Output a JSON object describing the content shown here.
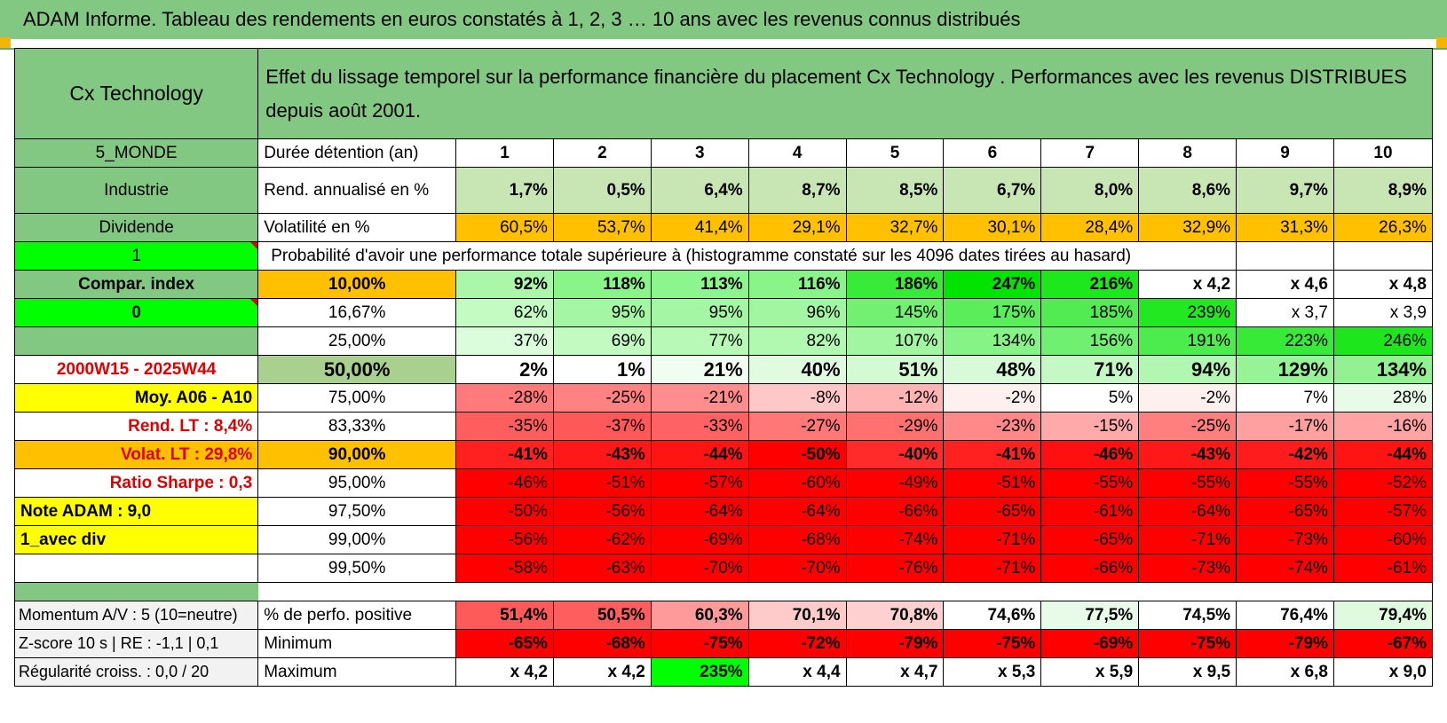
{
  "title": "ADAM Informe. Tableau des rendements en euros constatés à 1, 2, 3 … 10 ans avec les revenus connus distribués",
  "header": {
    "fund_name": "Cx Technology",
    "description": "Effet du lissage temporel sur la performance financière du placement Cx Technology . Performances avec les revenus DISTRIBUES depuis août 2001."
  },
  "side": {
    "category": "5_MONDE",
    "sector": "Industrie",
    "income_type": "Dividende",
    "flag_one": "1",
    "compar_index": "Compar. index",
    "flag_zero": "0",
    "period": "2000W15 - 2025W44",
    "moy": "Moy. A06 - A10",
    "rend_lt": "Rend. LT :    8,4%",
    "volat_lt": "Volat. LT :    29,8%",
    "sharpe": "Ratio Sharpe :     0,3",
    "note": "Note ADAM : 9,0",
    "avec_div": "1_avec div",
    "momentum": "Momentum A/V : 5 (10=neutre)",
    "zscore": "Z-score 10 s | RE : -1,1 | 0,1",
    "regularite": "Régularité croiss. : 0,0 / 20"
  },
  "labels": {
    "duration": "Durée détention (an)",
    "rend": "Rend. annualisé en %",
    "volat": "Volatilité en %",
    "probability": "Probabilité d'avoir une performance totale supérieure à (histogramme constaté sur les 4096 dates tirées au hasard)",
    "positive": "% de perfo. positive",
    "minimum": "Minimum",
    "maximum": "Maximum"
  },
  "years": [
    "1",
    "2",
    "3",
    "4",
    "5",
    "6",
    "7",
    "8",
    "9",
    "10"
  ],
  "rend": [
    "1,7%",
    "0,5%",
    "6,4%",
    "8,7%",
    "8,5%",
    "6,7%",
    "8,0%",
    "8,6%",
    "9,7%",
    "8,9%"
  ],
  "volat": [
    "60,5%",
    "53,7%",
    "41,4%",
    "29,1%",
    "32,7%",
    "30,1%",
    "28,4%",
    "32,9%",
    "31,3%",
    "26,3%"
  ],
  "prob_rows": [
    {
      "pct": "10,00%",
      "values": [
        "92%",
        "118%",
        "113%",
        "116%",
        "186%",
        "247%",
        "216%",
        "x 4,2",
        "x 4,6",
        "x 4,8"
      ]
    },
    {
      "pct": "16,67%",
      "values": [
        "62%",
        "95%",
        "95%",
        "96%",
        "145%",
        "175%",
        "185%",
        "239%",
        "x 3,7",
        "x 3,9"
      ]
    },
    {
      "pct": "25,00%",
      "values": [
        "37%",
        "69%",
        "77%",
        "82%",
        "107%",
        "134%",
        "156%",
        "191%",
        "223%",
        "246%"
      ]
    },
    {
      "pct": "50,00%",
      "values": [
        "2%",
        "1%",
        "21%",
        "40%",
        "51%",
        "48%",
        "71%",
        "94%",
        "129%",
        "134%"
      ]
    },
    {
      "pct": "75,00%",
      "values": [
        "-28%",
        "-25%",
        "-21%",
        "-8%",
        "-12%",
        "-2%",
        "5%",
        "-2%",
        "7%",
        "28%"
      ]
    },
    {
      "pct": "83,33%",
      "values": [
        "-35%",
        "-37%",
        "-33%",
        "-27%",
        "-29%",
        "-23%",
        "-15%",
        "-25%",
        "-17%",
        "-16%"
      ]
    },
    {
      "pct": "90,00%",
      "values": [
        "-41%",
        "-43%",
        "-44%",
        "-50%",
        "-40%",
        "-41%",
        "-46%",
        "-43%",
        "-42%",
        "-44%"
      ]
    },
    {
      "pct": "95,00%",
      "values": [
        "-46%",
        "-51%",
        "-57%",
        "-60%",
        "-49%",
        "-51%",
        "-55%",
        "-55%",
        "-55%",
        "-52%"
      ]
    },
    {
      "pct": "97,50%",
      "values": [
        "-50%",
        "-56%",
        "-64%",
        "-64%",
        "-66%",
        "-65%",
        "-61%",
        "-64%",
        "-65%",
        "-57%"
      ]
    },
    {
      "pct": "99,00%",
      "values": [
        "-56%",
        "-62%",
        "-69%",
        "-68%",
        "-74%",
        "-71%",
        "-65%",
        "-71%",
        "-73%",
        "-60%"
      ]
    },
    {
      "pct": "99,50%",
      "values": [
        "-58%",
        "-63%",
        "-70%",
        "-70%",
        "-76%",
        "-71%",
        "-66%",
        "-73%",
        "-74%",
        "-61%"
      ]
    }
  ],
  "positive": [
    "51,4%",
    "50,5%",
    "60,3%",
    "70,1%",
    "70,8%",
    "74,6%",
    "77,5%",
    "74,5%",
    "76,4%",
    "79,4%"
  ],
  "minimum": [
    "-65%",
    "-68%",
    "-75%",
    "-72%",
    "-79%",
    "-75%",
    "-69%",
    "-75%",
    "-79%",
    "-67%"
  ],
  "maximum": [
    "x 4,2",
    "x 4,2",
    "235%",
    "x 4,4",
    "x 4,7",
    "x 5,3",
    "x 5,9",
    "x 9,5",
    "x 6,8",
    "x 9,0"
  ],
  "colors": {
    "title_green": "#82c882",
    "rend_green": "#c8e6b4",
    "orange": "#ffc000",
    "yellow": "#ffff00",
    "lime": "#00ff00",
    "red": "#ff0000"
  },
  "cell_colors": {
    "prob_rows": [
      [
        "#aaf7aa",
        "#89f589",
        "#8df58d",
        "#89f589",
        "#38eb38",
        "#00e400",
        "#1ce81c",
        "#ffffff",
        "#ffffff",
        "#ffffff"
      ],
      [
        "#c3fbc3",
        "#a4f6a4",
        "#a4f6a4",
        "#a2f6a2",
        "#71f071",
        "#5aee5a",
        "#52ec52",
        "#22e822",
        "#ffffff",
        "#ffffff"
      ],
      [
        "#dcfddc",
        "#c2fac2",
        "#b8f9b8",
        "#b1f8b1",
        "#a2f6a2",
        "#86f386",
        "#70f070",
        "#4dec4d",
        "#37ea37",
        "#1de61d"
      ],
      [
        "#ffffff",
        "#ffffff",
        "#f0fdf0",
        "#e1fbe1",
        "#d4fad4",
        "#d8fad8",
        "#c4f8c4",
        "#b1f6b1",
        "#96f396",
        "#92f292"
      ],
      [
        "#ff7a7a",
        "#ff8282",
        "#ff8d8d",
        "#ffc8c8",
        "#ffb4b4",
        "#fff0f0",
        "#ffffff",
        "#fff0f0",
        "#ffffff",
        "#e8fbe8"
      ],
      [
        "#ff5e5e",
        "#ff5858",
        "#ff6262",
        "#ff7878",
        "#ff7070",
        "#ff8888",
        "#ffaaaa",
        "#ff7e7e",
        "#ffa0a0",
        "#ffa4a4"
      ],
      [
        "#ff2020",
        "#ff1818",
        "#ff1414",
        "#ff0000",
        "#ff2a2a",
        "#ff2020",
        "#ff1010",
        "#ff1818",
        "#ff1c1c",
        "#ff1414"
      ],
      [
        "#ff0000",
        "#ff0000",
        "#ff0000",
        "#ff0000",
        "#ff0000",
        "#ff0000",
        "#ff0000",
        "#ff0000",
        "#ff0000",
        "#ff0000"
      ],
      [
        "#ff0000",
        "#ff0000",
        "#ff0000",
        "#ff0000",
        "#ff0000",
        "#ff0000",
        "#ff0000",
        "#ff0000",
        "#ff0000",
        "#ff0000"
      ],
      [
        "#ff0000",
        "#ff0000",
        "#ff0000",
        "#ff0000",
        "#ff0000",
        "#ff0000",
        "#ff0000",
        "#ff0000",
        "#ff0000",
        "#ff0000"
      ],
      [
        "#ff0000",
        "#ff0000",
        "#ff0000",
        "#ff0000",
        "#ff0000",
        "#ff0000",
        "#ff0000",
        "#ff0000",
        "#ff0000",
        "#ff0000"
      ]
    ],
    "pct_bg": [
      "#ffc000",
      "#ffffff",
      "#ffffff",
      "#a9d08e",
      "#ffffff",
      "#ffffff",
      "#ffc000",
      "#ffffff",
      "#ffffff",
      "#ffffff",
      "#ffffff"
    ],
    "positive": [
      "#ff5a5a",
      "#ff5e5e",
      "#ff9a9a",
      "#ffcaca",
      "#ffd0d0",
      "#ffffff",
      "#e8fbe8",
      "#ffffff",
      "#ffffff",
      "#e0fae0"
    ],
    "minimum": [
      "#ff0000",
      "#ff0000",
      "#ff0000",
      "#ff0000",
      "#ff0000",
      "#ff0000",
      "#ff0000",
      "#ff0000",
      "#ff0000",
      "#ff0000"
    ],
    "maximum": [
      "#ffffff",
      "#ffffff",
      "#00ff00",
      "#ffffff",
      "#ffffff",
      "#ffffff",
      "#ffffff",
      "#ffffff",
      "#ffffff",
      "#ffffff"
    ]
  }
}
